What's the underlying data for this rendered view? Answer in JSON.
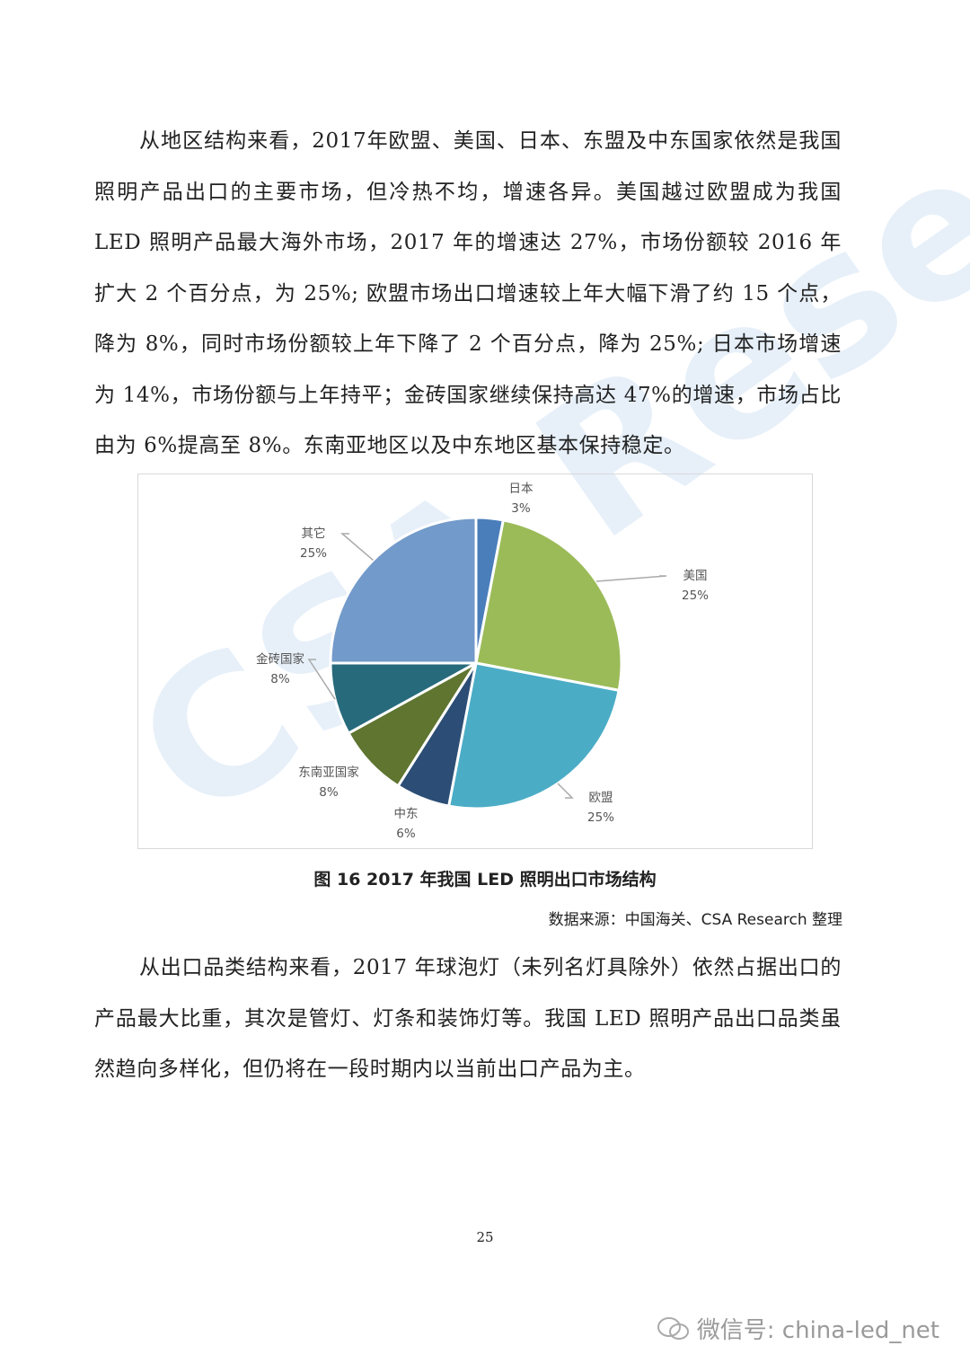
{
  "paragraphs": [
    "从地区结构来看，2017年欧盟、美国、日本、东盟及中东国家依然是我国照明产品出口的主要市场，但冷热不均，增速各异。美国越过欧盟成为我国 LED 照明产品最大海外市场，2017 年的增速达 27%，市场份额较 2016 年扩大 2 个百分点，为 25%; 欧盟市场出口增速较上年大幅下滑了约 15 个点，降为 8%，同时市场份额较上年下降了 2 个百分点，降为 25%; 日本市场增速为 14%，市场份额与上年持平；金砖国家继续保持高达 47%的增速，市场占比由为 6%提高至 8%。东南亚地区以及中东地区基本保持稳定。",
    "从出口品类结构来看，2017 年球泡灯（未列名灯具除外）依然占据出口的产品最大比重，其次是管灯、灯条和装饰灯等。我国 LED 照明产品出口品类虽然趋向多样化，但仍将在一段时期内以当前出口产品为主。"
  ],
  "figure": {
    "caption": "图 16 2017 年我国 LED 照明出口市场结构",
    "source": "数据来源：中国海关、CSA  Research 整理"
  },
  "chart_data": {
    "type": "pie",
    "categories": [
      "日本",
      "美国",
      "欧盟",
      "中东",
      "东南亚国家",
      "金砖国家",
      "其它"
    ],
    "values": [
      3,
      25,
      25,
      6,
      8,
      8,
      25
    ],
    "labels": [
      "3%",
      "25%",
      "25%",
      "6%",
      "8%",
      "8%",
      "25%"
    ],
    "colors": [
      "#4a7ebb",
      "#9bbb59",
      "#4bacc6",
      "#2c4d75",
      "#5f7530",
      "#276a7c",
      "#729aca"
    ],
    "start": "top",
    "direction": "clockwise"
  },
  "page_number": "25",
  "watermark": "CSA Research",
  "footer": {
    "wechat": "微信号: china-led_net"
  }
}
